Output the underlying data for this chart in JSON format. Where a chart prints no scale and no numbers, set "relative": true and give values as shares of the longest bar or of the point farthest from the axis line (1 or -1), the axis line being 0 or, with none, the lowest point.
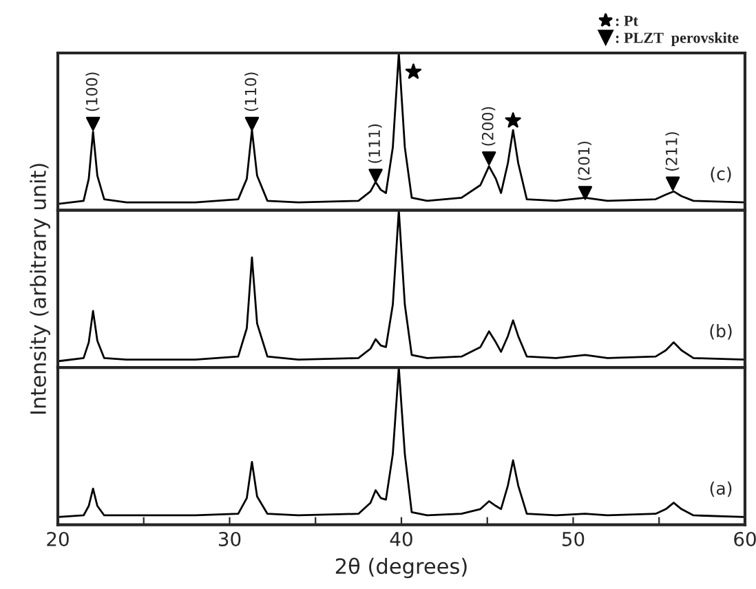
{
  "chart_data": [
    {
      "type": "line",
      "relative": true,
      "xlim": [
        20,
        60
      ],
      "tick_labels": false,
      "legend": "top right",
      "x": [
        20,
        21.5,
        21.8,
        22.05,
        22.3,
        22.7,
        24,
        28,
        30.5,
        31.0,
        31.3,
        31.6,
        32.2,
        34,
        37.5,
        38.2,
        38.5,
        38.8,
        39.1,
        39.5,
        39.85,
        40.2,
        40.6,
        41.5,
        43.5,
        44.6,
        45.1,
        45.5,
        45.8,
        46.2,
        46.5,
        46.8,
        47.3,
        49,
        50.7,
        52,
        54.8,
        55.4,
        55.85,
        56.3,
        57,
        60
      ],
      "series": [
        {
          "color": "#000000",
          "values": [
            0.04,
            0.06,
            0.2,
            0.5,
            0.22,
            0.07,
            0.05,
            0.05,
            0.07,
            0.2,
            0.51,
            0.22,
            0.06,
            0.05,
            0.06,
            0.12,
            0.18,
            0.13,
            0.11,
            0.4,
            1,
            0.4,
            0.08,
            0.06,
            0.08,
            0.16,
            0.28,
            0.2,
            0.11,
            0.3,
            0.51,
            0.3,
            0.07,
            0.06,
            0.08,
            0.06,
            0.07,
            0.1,
            0.12,
            0.09,
            0.06,
            0.05
          ]
        },
        {
          "type": "scatter",
          "name": ": Pt",
          "marker": "star",
          "color": "#000000",
          "x": [
            40.7,
            46.5
          ],
          "values": [
            0.88,
            0.57
          ]
        },
        {
          "type": "scatter",
          "name": ": PLZT  perovskite",
          "marker": "triangle",
          "color": "#000000",
          "x": [
            22.05,
            31.3,
            38.5,
            45.1,
            50.7,
            55.8
          ],
          "values": [
            0.55,
            0.55,
            0.22,
            0.33,
            0.11,
            0.17
          ]
        }
      ],
      "annotations": [
        "(100)",
        "(110)",
        "(111)",
        "(200)",
        "(201)",
        "(211)",
        "(c)"
      ]
    },
    {
      "type": "line",
      "relative": true,
      "xlim": [
        20,
        60
      ],
      "tick_labels": false,
      "ylabel": "Intensity (arbitrary unit)",
      "x": [
        20,
        21.5,
        21.8,
        22.05,
        22.3,
        22.7,
        24,
        28,
        30.5,
        31.0,
        31.3,
        31.6,
        32.2,
        34,
        37.5,
        38.2,
        38.5,
        38.8,
        39.1,
        39.5,
        39.85,
        40.2,
        40.6,
        41.5,
        43.5,
        44.6,
        45.1,
        45.5,
        45.8,
        46.2,
        46.5,
        46.8,
        47.3,
        49,
        50.7,
        52,
        54.8,
        55.4,
        55.85,
        56.3,
        57,
        60
      ],
      "series": [
        {
          "color": "#000000",
          "values": [
            0.04,
            0.06,
            0.16,
            0.36,
            0.17,
            0.06,
            0.05,
            0.05,
            0.07,
            0.25,
            0.7,
            0.28,
            0.07,
            0.05,
            0.06,
            0.12,
            0.18,
            0.14,
            0.13,
            0.4,
            1,
            0.4,
            0.08,
            0.06,
            0.07,
            0.13,
            0.23,
            0.16,
            0.1,
            0.2,
            0.3,
            0.2,
            0.07,
            0.06,
            0.08,
            0.06,
            0.07,
            0.11,
            0.16,
            0.11,
            0.06,
            0.05
          ]
        }
      ],
      "annotations": [
        "(b)"
      ]
    },
    {
      "type": "line",
      "relative": true,
      "xlim": [
        20,
        60
      ],
      "tick_labels": "x",
      "xlabel": "2θ (degrees)",
      "xticks": [
        20,
        {
          "value": 25,
          "label": null
        },
        30,
        {
          "value": 35,
          "label": null
        },
        40,
        {
          "value": 45,
          "label": null
        },
        50,
        {
          "value": 55,
          "label": null
        },
        60
      ],
      "x": [
        20,
        21.5,
        21.8,
        22.05,
        22.3,
        22.7,
        24,
        28,
        30.5,
        31.0,
        31.3,
        31.6,
        32.2,
        34,
        37.5,
        38.2,
        38.5,
        38.8,
        39.1,
        39.5,
        39.85,
        40.2,
        40.6,
        41.5,
        43.5,
        44.6,
        45.1,
        45.5,
        45.8,
        46.2,
        46.5,
        46.8,
        47.3,
        49,
        50.7,
        52,
        54.8,
        55.4,
        55.85,
        56.3,
        57,
        60
      ],
      "series": [
        {
          "color": "#000000",
          "values": [
            0.05,
            0.06,
            0.12,
            0.23,
            0.12,
            0.06,
            0.06,
            0.06,
            0.07,
            0.17,
            0.4,
            0.18,
            0.07,
            0.06,
            0.07,
            0.14,
            0.22,
            0.17,
            0.16,
            0.45,
            1,
            0.45,
            0.08,
            0.06,
            0.07,
            0.1,
            0.15,
            0.12,
            0.1,
            0.25,
            0.41,
            0.25,
            0.07,
            0.06,
            0.07,
            0.06,
            0.07,
            0.1,
            0.14,
            0.1,
            0.06,
            0.05
          ]
        }
      ],
      "annotations": [
        "(a)"
      ]
    }
  ]
}
